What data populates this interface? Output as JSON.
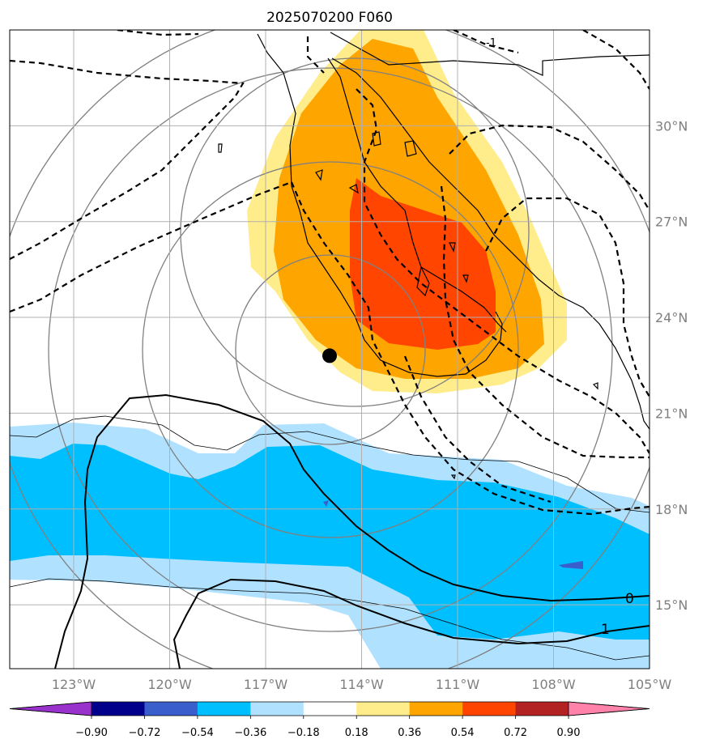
{
  "chart_data": {
    "type": "map",
    "title": "2025070200 F060",
    "lon_ticks": [
      "123°W",
      "120°W",
      "117°W",
      "114°W",
      "111°W",
      "108°W",
      "105°W"
    ],
    "lat_ticks": [
      "15°N",
      "18°N",
      "21°N",
      "24°N",
      "27°N",
      "30°N"
    ],
    "lon_values": [
      -123,
      -120,
      -117,
      -114,
      -111,
      -108,
      -105
    ],
    "lat_values": [
      15,
      18,
      21,
      24,
      27,
      30
    ],
    "extent": {
      "lon": [
        -125,
        -105
      ],
      "lat": [
        13,
        33
      ]
    },
    "grid": true,
    "marker": {
      "lon": -115.0,
      "lat": 22.8
    },
    "contour_labels": [
      "0",
      "1",
      "-1"
    ],
    "colorbar": {
      "ticks": [
        "−0.90",
        "−0.72",
        "−0.54",
        "−0.36",
        "−0.18",
        "0.18",
        "0.36",
        "0.54",
        "0.72",
        "0.90"
      ],
      "levels": [
        -0.9,
        -0.72,
        -0.54,
        -0.36,
        -0.18,
        0.18,
        0.36,
        0.54,
        0.72,
        0.9
      ],
      "colors": [
        "#9932cc",
        "#00008b",
        "#3a5fcd",
        "#00bfff",
        "#b0e2ff",
        "#ffffff",
        "#ffec8b",
        "#ffa500",
        "#ff4500",
        "#b22222",
        "#ff82ab"
      ]
    },
    "fill_colors": {
      "pos1": "#ffec8b",
      "pos2": "#ffa500",
      "pos3": "#ff4500",
      "neg1": "#b0e2ff",
      "neg2": "#00bfff",
      "neg3": "#3a5fcd"
    }
  }
}
